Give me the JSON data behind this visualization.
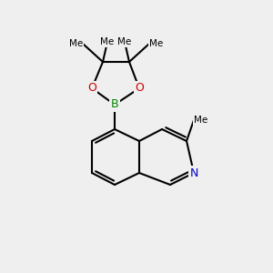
{
  "background_color": "#efefef",
  "bond_color": "#000000",
  "bond_width": 1.5,
  "font_size": 9,
  "atoms": {
    "N": {
      "color": "#0000ff"
    },
    "O": {
      "color": "#ff0000"
    },
    "B": {
      "color": "#00aa00"
    },
    "C": {
      "color": "#000000"
    },
    "Me": {
      "color": "#000000"
    }
  }
}
